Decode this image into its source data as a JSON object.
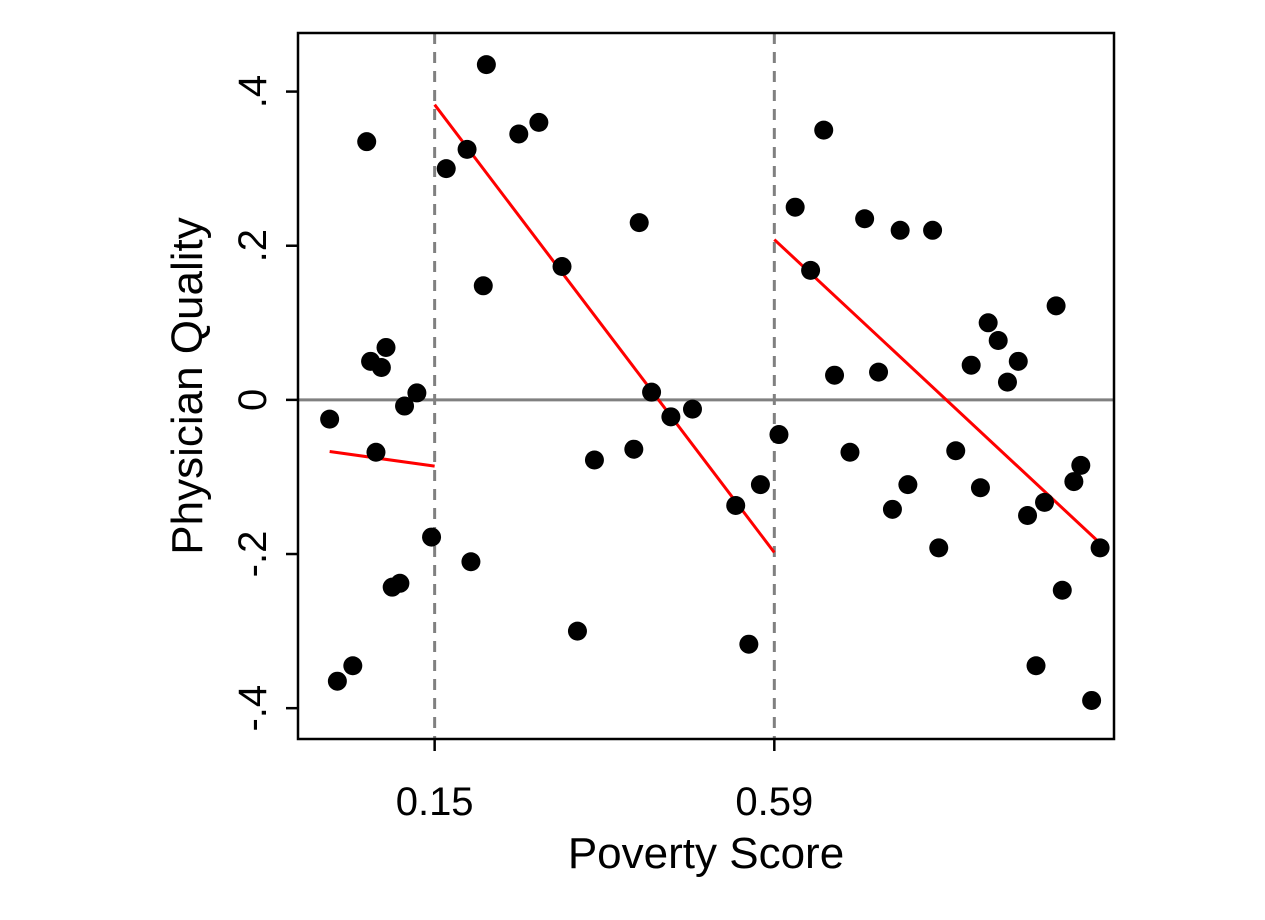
{
  "chart_data": {
    "type": "scatter",
    "xlabel": "Poverty Score",
    "ylabel": "Physician Quality",
    "xlim": [
      -0.027,
      1.03
    ],
    "ylim": [
      -0.44,
      0.476
    ],
    "x_ticks": [
      {
        "value": 0.15,
        "label": "0.15"
      },
      {
        "value": 0.59,
        "label": "0.59"
      }
    ],
    "y_ticks": [
      {
        "value": 0.4,
        "label": ".4"
      },
      {
        "value": 0.2,
        "label": ".2"
      },
      {
        "value": 0,
        "label": "0"
      },
      {
        "value": -0.2,
        "label": "-.2"
      },
      {
        "value": -0.4,
        "label": "-.4"
      }
    ],
    "grid": false,
    "legend": "none",
    "reference_lines": {
      "vertical_dashed": [
        0.15,
        0.59
      ],
      "horizontal_solid": [
        0
      ]
    },
    "points": [
      {
        "x": 0.014,
        "y": -0.025
      },
      {
        "x": 0.024,
        "y": -0.365
      },
      {
        "x": 0.044,
        "y": -0.345
      },
      {
        "x": 0.062,
        "y": 0.335
      },
      {
        "x": 0.067,
        "y": 0.05
      },
      {
        "x": 0.074,
        "y": -0.068
      },
      {
        "x": 0.081,
        "y": 0.042
      },
      {
        "x": 0.087,
        "y": 0.068
      },
      {
        "x": 0.095,
        "y": -0.243
      },
      {
        "x": 0.105,
        "y": -0.238
      },
      {
        "x": 0.111,
        "y": -0.008
      },
      {
        "x": 0.127,
        "y": 0.009
      },
      {
        "x": 0.146,
        "y": -0.178
      },
      {
        "x": 0.165,
        "y": 0.3
      },
      {
        "x": 0.192,
        "y": 0.325
      },
      {
        "x": 0.197,
        "y": -0.21
      },
      {
        "x": 0.213,
        "y": 0.148
      },
      {
        "x": 0.217,
        "y": 0.435
      },
      {
        "x": 0.259,
        "y": 0.345
      },
      {
        "x": 0.285,
        "y": 0.36
      },
      {
        "x": 0.315,
        "y": 0.173
      },
      {
        "x": 0.335,
        "y": -0.3
      },
      {
        "x": 0.357,
        "y": -0.078
      },
      {
        "x": 0.408,
        "y": -0.064
      },
      {
        "x": 0.415,
        "y": 0.23
      },
      {
        "x": 0.431,
        "y": 0.01
      },
      {
        "x": 0.456,
        "y": -0.022
      },
      {
        "x": 0.484,
        "y": -0.012
      },
      {
        "x": 0.54,
        "y": -0.137
      },
      {
        "x": 0.557,
        "y": -0.317
      },
      {
        "x": 0.572,
        "y": -0.11
      },
      {
        "x": 0.596,
        "y": -0.045
      },
      {
        "x": 0.617,
        "y": 0.25
      },
      {
        "x": 0.637,
        "y": 0.168
      },
      {
        "x": 0.654,
        "y": 0.35
      },
      {
        "x": 0.668,
        "y": 0.032
      },
      {
        "x": 0.688,
        "y": -0.068
      },
      {
        "x": 0.707,
        "y": 0.235
      },
      {
        "x": 0.725,
        "y": 0.036
      },
      {
        "x": 0.743,
        "y": -0.142
      },
      {
        "x": 0.753,
        "y": 0.22
      },
      {
        "x": 0.763,
        "y": -0.11
      },
      {
        "x": 0.795,
        "y": 0.22
      },
      {
        "x": 0.803,
        "y": -0.192
      },
      {
        "x": 0.825,
        "y": -0.066
      },
      {
        "x": 0.845,
        "y": 0.045
      },
      {
        "x": 0.857,
        "y": -0.114
      },
      {
        "x": 0.867,
        "y": 0.1
      },
      {
        "x": 0.88,
        "y": 0.077
      },
      {
        "x": 0.892,
        "y": 0.023
      },
      {
        "x": 0.906,
        "y": 0.05
      },
      {
        "x": 0.918,
        "y": -0.15
      },
      {
        "x": 0.929,
        "y": -0.345
      },
      {
        "x": 0.94,
        "y": -0.133
      },
      {
        "x": 0.955,
        "y": 0.122
      },
      {
        "x": 0.963,
        "y": -0.247
      },
      {
        "x": 0.978,
        "y": -0.106
      },
      {
        "x": 0.987,
        "y": -0.085
      },
      {
        "x": 1.001,
        "y": -0.39
      },
      {
        "x": 1.012,
        "y": -0.192
      }
    ],
    "fit_lines": [
      {
        "x": [
          0.014,
          0.15
        ],
        "y": [
          -0.067,
          -0.086
        ]
      },
      {
        "x": [
          0.15,
          0.59
        ],
        "y": [
          0.383,
          -0.198
        ]
      },
      {
        "x": [
          0.59,
          1.012
        ],
        "y": [
          0.208,
          -0.186
        ]
      }
    ],
    "colors": {
      "points": "#000000",
      "fit_lines": "#ff0000",
      "reference_lines": "#808080",
      "axes": "#000000"
    }
  }
}
